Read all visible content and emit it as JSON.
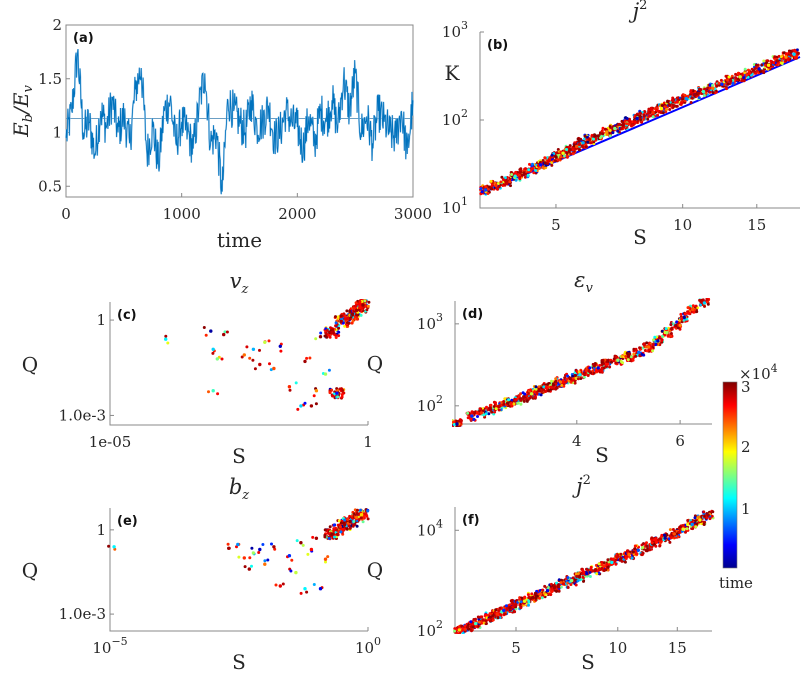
{
  "figure": {
    "colorbar": {
      "label": "time",
      "multiplier": "×10",
      "multiplier_exp": "4",
      "ticks": [
        "1",
        "2",
        "3"
      ],
      "tick_values": [
        1,
        2,
        3
      ],
      "range": [
        0,
        3
      ],
      "colormap": "jet"
    }
  },
  "chart_data": [
    {
      "id": "a",
      "panel_label": "(a)",
      "type": "line",
      "title": "",
      "xlabel": "time",
      "ylabel": "E_b / E_v",
      "ylabel_main": "E",
      "ylabel_sub1": "b",
      "ylabel_sub2": "v",
      "xlim": [
        0,
        3000
      ],
      "ylim": [
        0.4,
        2
      ],
      "xticks": [
        0,
        1000,
        2000,
        3000
      ],
      "xtick_labels": [
        "0",
        "1000",
        "2000",
        "3000"
      ],
      "yticks": [
        0.5,
        1,
        1.5,
        2
      ],
      "ytick_labels": [
        "0.5",
        "1",
        "1.5",
        "2"
      ],
      "mean_line": 1.13,
      "color": "#0072BD",
      "x": [
        0,
        50,
        100,
        150,
        200,
        250,
        300,
        350,
        400,
        450,
        500,
        550,
        600,
        650,
        700,
        750,
        800,
        850,
        900,
        950,
        1000,
        1050,
        1100,
        1150,
        1200,
        1250,
        1300,
        1350,
        1400,
        1450,
        1500,
        1550,
        1600,
        1650,
        1700,
        1750,
        1800,
        1850,
        1900,
        1950,
        2000,
        2050,
        2100,
        2150,
        2200,
        2250,
        2300,
        2350,
        2400,
        2450,
        2500,
        2550,
        2600,
        2650,
        2700,
        2750,
        2800,
        2850,
        2900,
        2950,
        3000
      ],
      "values": [
        0.95,
        1.2,
        1.75,
        1.0,
        1.1,
        0.8,
        1.2,
        1.05,
        1.3,
        1.0,
        1.15,
        0.9,
        1.4,
        1.6,
        0.8,
        1.05,
        0.7,
        1.2,
        1.3,
        0.9,
        1.1,
        1.0,
        0.85,
        1.25,
        1.55,
        0.9,
        1.0,
        0.45,
        1.3,
        1.2,
        1.1,
        1.0,
        1.3,
        1.05,
        1.1,
        1.25,
        0.95,
        1.0,
        1.2,
        1.1,
        1.05,
        0.85,
        1.15,
        0.9,
        1.2,
        1.1,
        1.3,
        1.05,
        1.5,
        1.2,
        1.55,
        1.0,
        1.15,
        0.9,
        1.2,
        1.1,
        1.0,
        0.95,
        1.2,
        0.8,
        1.3
      ]
    },
    {
      "id": "b",
      "panel_label": "(b)",
      "type": "scatter",
      "title": "j",
      "title_sup": "2",
      "xlabel": "S",
      "ylabel": "K",
      "xscale": "log",
      "yscale": "log",
      "xlim": [
        3.3,
        19
      ],
      "ylim": [
        10,
        1000
      ],
      "xticks": [
        5,
        10,
        15
      ],
      "xtick_labels": [
        "5",
        "10",
        "15"
      ],
      "yticks": [
        10,
        100,
        1000
      ],
      "ytick_labels": [
        "10",
        "10",
        "10"
      ],
      "ytick_exps": [
        "1",
        "2",
        "3"
      ],
      "fit_line": {
        "x": [
          3.3,
          19
        ],
        "y": [
          14.5,
          520
        ],
        "color": "#0000FF"
      },
      "points": [
        [
          3.4,
          16,
          0.6
        ],
        [
          3.6,
          18,
          2.5
        ],
        [
          3.8,
          20,
          2.8
        ],
        [
          4.0,
          23,
          1.2
        ],
        [
          4.2,
          25,
          2.9
        ],
        [
          4.4,
          28,
          2.6
        ],
        [
          4.6,
          31,
          0.4
        ],
        [
          4.8,
          34,
          2.7
        ],
        [
          5.0,
          38,
          3.0
        ],
        [
          5.2,
          42,
          1.8
        ],
        [
          5.4,
          46,
          2.9
        ],
        [
          5.6,
          50,
          2.4
        ],
        [
          5.8,
          55,
          0.9
        ],
        [
          6.0,
          60,
          2.8
        ],
        [
          6.3,
          66,
          2.95
        ],
        [
          6.6,
          73,
          2.2
        ],
        [
          6.9,
          80,
          1.5
        ],
        [
          7.2,
          88,
          2.9
        ],
        [
          7.5,
          96,
          2.7
        ],
        [
          7.8,
          104,
          0.2
        ],
        [
          8.1,
          112,
          2.85
        ],
        [
          8.5,
          122,
          2.5
        ],
        [
          8.9,
          135,
          1.9
        ],
        [
          9.3,
          148,
          2.9
        ],
        [
          9.7,
          160,
          2.6
        ],
        [
          10.2,
          175,
          0.8
        ],
        [
          10.7,
          192,
          2.9
        ],
        [
          11.2,
          210,
          1.3
        ],
        [
          11.8,
          230,
          2.3
        ],
        [
          12.4,
          255,
          0.5
        ],
        [
          13.0,
          280,
          2.8
        ],
        [
          13.7,
          310,
          1.7
        ],
        [
          14.4,
          340,
          2.6
        ],
        [
          15.2,
          380,
          0.3
        ],
        [
          16.0,
          420,
          1.9
        ],
        [
          16.8,
          470,
          2.9
        ],
        [
          17.6,
          520,
          2.2
        ],
        [
          18.4,
          560,
          1.0
        ]
      ]
    },
    {
      "id": "c",
      "panel_label": "(c)",
      "type": "scatter",
      "title": "v",
      "title_sub": "z",
      "xlabel": "S",
      "ylabel": "Q",
      "xscale": "log",
      "yscale": "log",
      "xlim": [
        1e-05,
        1
      ],
      "ylim": [
        0.0005,
        3.7
      ],
      "xticks": [
        1e-05,
        1
      ],
      "xtick_labels": [
        "1e-05",
        "1"
      ],
      "yticks": [
        0.001,
        1
      ],
      "ytick_labels": [
        "1.0e-3",
        "1"
      ],
      "points": [
        [
          0.00012,
          0.25,
          1.1
        ],
        [
          0.0009,
          0.45,
          0.1
        ],
        [
          0.0016,
          0.35,
          2.9
        ],
        [
          0.001,
          0.12,
          1.0
        ],
        [
          0.0012,
          0.06,
          1.5
        ],
        [
          0.001,
          0.006,
          1.3
        ],
        [
          0.004,
          0.08,
          2.3
        ],
        [
          0.006,
          0.12,
          0.9
        ],
        [
          0.008,
          0.04,
          2.8
        ],
        [
          0.01,
          0.2,
          1.7
        ],
        [
          0.015,
          0.03,
          2.4
        ],
        [
          0.02,
          0.15,
          0.2
        ],
        [
          0.03,
          0.008,
          2.5
        ],
        [
          0.05,
          0.002,
          1.0
        ],
        [
          0.06,
          0.05,
          2.9
        ],
        [
          0.08,
          0.002,
          2.9
        ],
        [
          0.1,
          0.006,
          2.2
        ],
        [
          0.12,
          0.3,
          2.95
        ],
        [
          0.15,
          0.02,
          1.6
        ],
        [
          0.2,
          0.4,
          2.8
        ],
        [
          0.25,
          0.005,
          0.4
        ],
        [
          0.3,
          0.9,
          2.9
        ],
        [
          0.4,
          1.1,
          2.7
        ],
        [
          0.5,
          1.5,
          2.95
        ],
        [
          0.6,
          2.0,
          2.9
        ],
        [
          0.7,
          2.5,
          2.6
        ],
        [
          0.8,
          3.0,
          2.95
        ]
      ]
    },
    {
      "id": "d",
      "panel_label": "(d)",
      "type": "scatter",
      "title": "ε",
      "title_sub": "v",
      "xlabel": "S",
      "ylabel": "Q",
      "xscale": "log",
      "yscale": "log",
      "xlim": [
        2.48,
        6.8
      ],
      "ylim": [
        60,
        1900
      ],
      "xticks": [
        4,
        6
      ],
      "xtick_labels": [
        "4",
        "6"
      ],
      "yticks": [
        100,
        1000
      ],
      "ytick_labels": [
        "10",
        "10"
      ],
      "ytick_exps": [
        "2",
        "3"
      ],
      "points": [
        [
          2.5,
          60,
          0.1
        ],
        [
          2.65,
          75,
          0.5
        ],
        [
          2.75,
          82,
          2.5
        ],
        [
          2.85,
          90,
          2.9
        ],
        [
          2.95,
          98,
          2.8
        ],
        [
          3.05,
          108,
          2.95
        ],
        [
          3.15,
          118,
          2.7
        ],
        [
          3.25,
          128,
          2.9
        ],
        [
          3.35,
          140,
          1.7
        ],
        [
          3.45,
          152,
          2.9
        ],
        [
          3.55,
          165,
          2.6
        ],
        [
          3.65,
          180,
          2.95
        ],
        [
          3.75,
          195,
          2.3
        ],
        [
          3.9,
          215,
          2.9
        ],
        [
          4.05,
          240,
          1.1
        ],
        [
          4.2,
          265,
          2.8
        ],
        [
          4.35,
          290,
          0.3
        ],
        [
          4.5,
          320,
          2.6
        ],
        [
          4.7,
          360,
          1.5
        ],
        [
          4.9,
          400,
          2.9
        ],
        [
          5.1,
          450,
          0.7
        ],
        [
          5.3,
          520,
          2.3
        ],
        [
          5.5,
          620,
          0.2
        ],
        [
          5.7,
          780,
          1.6
        ],
        [
          5.9,
          950,
          2.9
        ],
        [
          6.1,
          1200,
          0.1
        ],
        [
          6.3,
          1500,
          2.4
        ],
        [
          6.6,
          1800,
          1.0
        ]
      ]
    },
    {
      "id": "e",
      "panel_label": "(e)",
      "type": "scatter",
      "title": "b",
      "title_sub": "z",
      "xlabel": "S",
      "ylabel": "Q",
      "xscale": "log",
      "yscale": "log",
      "xlim": [
        1e-05,
        1
      ],
      "ylim": [
        0.00025,
        6
      ],
      "xticks": [
        1e-05,
        1
      ],
      "xtick_labels": [
        "10",
        "10"
      ],
      "xtick_exps": [
        "−5",
        "0"
      ],
      "yticks": [
        0.001,
        1
      ],
      "ytick_labels": [
        "1.0e-3",
        "1"
      ],
      "points": [
        [
          1.2e-05,
          0.25,
          1.1
        ],
        [
          0.002,
          0.22,
          2.9
        ],
        [
          0.003,
          0.3,
          0.8
        ],
        [
          0.004,
          0.1,
          2.5
        ],
        [
          0.005,
          0.04,
          2.9
        ],
        [
          0.006,
          0.15,
          1.6
        ],
        [
          0.008,
          0.2,
          0.2
        ],
        [
          0.01,
          0.06,
          2.3
        ],
        [
          0.015,
          0.25,
          2.9
        ],
        [
          0.02,
          0.01,
          2.7
        ],
        [
          0.03,
          0.12,
          0.5
        ],
        [
          0.04,
          0.03,
          1.7
        ],
        [
          0.05,
          0.35,
          2.95
        ],
        [
          0.06,
          0.008,
          1.1
        ],
        [
          0.08,
          0.2,
          2.6
        ],
        [
          0.1,
          0.5,
          2.9
        ],
        [
          0.12,
          0.008,
          0.3
        ],
        [
          0.15,
          0.09,
          2.4
        ],
        [
          0.2,
          0.7,
          2.95
        ],
        [
          0.25,
          1.0,
          2.8
        ],
        [
          0.35,
          1.5,
          2.9
        ],
        [
          0.45,
          2.0,
          2.95
        ],
        [
          0.6,
          2.8,
          2.3
        ],
        [
          0.75,
          3.5,
          2.0
        ]
      ]
    },
    {
      "id": "f",
      "panel_label": "(f)",
      "type": "scatter",
      "title": "j",
      "title_sup": "2",
      "xlabel": "S",
      "ylabel": "Q",
      "xscale": "log",
      "yscale": "log",
      "xlim": [
        3.3,
        19
      ],
      "ylim": [
        100,
        29000
      ],
      "xticks": [
        5,
        10,
        15
      ],
      "xtick_labels": [
        "5",
        "10",
        "15"
      ],
      "yticks": [
        100,
        10000
      ],
      "ytick_labels": [
        "10",
        "10"
      ],
      "ytick_exps": [
        "2",
        "4"
      ],
      "points": [
        [
          3.4,
          105,
          2.0
        ],
        [
          3.6,
          120,
          2.9
        ],
        [
          3.8,
          140,
          1.3
        ],
        [
          4.0,
          165,
          2.8
        ],
        [
          4.2,
          190,
          2.95
        ],
        [
          4.4,
          220,
          2.5
        ],
        [
          4.6,
          255,
          0.5
        ],
        [
          4.8,
          290,
          2.9
        ],
        [
          5.0,
          330,
          2.8
        ],
        [
          5.3,
          390,
          1.8
        ],
        [
          5.6,
          460,
          2.95
        ],
        [
          5.9,
          540,
          2.4
        ],
        [
          6.2,
          630,
          0.3
        ],
        [
          6.5,
          730,
          2.9
        ],
        [
          6.9,
          860,
          2.7
        ],
        [
          7.3,
          1000,
          1.5
        ],
        [
          7.7,
          1180,
          2.9
        ],
        [
          8.1,
          1380,
          0.2
        ],
        [
          8.6,
          1650,
          2.85
        ],
        [
          9.1,
          1950,
          2.5
        ],
        [
          9.6,
          2300,
          1.1
        ],
        [
          10.2,
          2750,
          2.9
        ],
        [
          10.8,
          3300,
          2.3
        ],
        [
          11.5,
          4000,
          0.6
        ],
        [
          12.2,
          4800,
          2.9
        ],
        [
          13.0,
          5800,
          2.6
        ],
        [
          13.8,
          7000,
          0.1
        ],
        [
          14.7,
          8500,
          2.4
        ],
        [
          15.6,
          10500,
          1.8
        ],
        [
          16.6,
          13000,
          0.8
        ],
        [
          17.5,
          16000,
          1.9
        ],
        [
          18.5,
          20000,
          2.9
        ]
      ]
    }
  ]
}
